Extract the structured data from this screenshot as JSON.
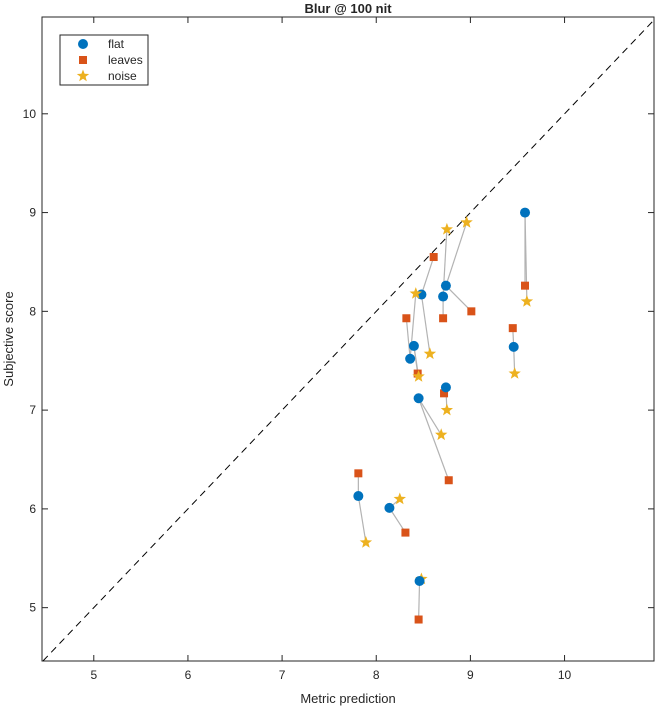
{
  "chart_data": {
    "type": "scatter",
    "title": "Blur @ 100 nit",
    "xlabel": "Metric prediction",
    "ylabel": "Subjective score",
    "xlim": [
      4.45,
      10.95
    ],
    "ylim": [
      4.46,
      10.98
    ],
    "xticks": [
      5,
      6,
      7,
      8,
      9,
      10
    ],
    "yticks": [
      5,
      6,
      7,
      8,
      9,
      10
    ],
    "grid": false,
    "legend_placement": "top-left",
    "reference_line": "y = x (dashed)",
    "series": [
      {
        "name": "flat",
        "marker": "circle",
        "color": "#0072BD"
      },
      {
        "name": "leaves",
        "marker": "square",
        "color": "#D95319"
      },
      {
        "name": "noise",
        "marker": "star",
        "color": "#EDB120"
      }
    ],
    "groups": [
      {
        "flat": [
          9.58,
          9.0
        ],
        "leaves": [
          9.58,
          8.26
        ],
        "noise": [
          9.6,
          8.1
        ]
      },
      {
        "flat": [
          9.46,
          7.64
        ],
        "leaves": [
          9.45,
          7.83
        ],
        "noise": [
          9.47,
          7.37
        ]
      },
      {
        "flat": [
          8.74,
          8.26
        ],
        "leaves": [
          9.01,
          8.0
        ],
        "noise": [
          8.96,
          8.9
        ]
      },
      {
        "flat": [
          8.71,
          8.15
        ],
        "leaves": [
          8.71,
          7.93
        ],
        "noise": [
          8.75,
          8.83
        ]
      },
      {
        "flat": [
          8.48,
          8.17
        ],
        "leaves": [
          8.61,
          8.55
        ],
        "noise": [
          8.57,
          7.57
        ]
      },
      {
        "flat": [
          8.36,
          7.52
        ],
        "leaves": [
          8.32,
          7.93
        ],
        "noise": [
          8.42,
          8.18
        ]
      },
      {
        "flat": [
          8.4,
          7.65
        ],
        "leaves": [
          8.44,
          7.37
        ],
        "noise": [
          8.45,
          7.34
        ]
      },
      {
        "flat": [
          8.74,
          7.23
        ],
        "leaves": [
          8.72,
          7.17
        ],
        "noise": [
          8.75,
          7.0
        ]
      },
      {
        "flat": [
          8.45,
          7.12
        ],
        "leaves": [
          8.77,
          6.29
        ],
        "noise": [
          8.69,
          6.75
        ]
      },
      {
        "flat": [
          7.81,
          6.13
        ],
        "leaves": [
          7.81,
          6.36
        ],
        "noise": [
          7.89,
          5.66
        ]
      },
      {
        "flat": [
          8.14,
          6.01
        ],
        "leaves": [
          8.31,
          5.76
        ],
        "noise": [
          8.25,
          6.1
        ]
      },
      {
        "flat": [
          8.46,
          5.27
        ],
        "leaves": [
          8.45,
          4.88
        ],
        "noise": [
          8.48,
          5.29
        ]
      }
    ]
  }
}
